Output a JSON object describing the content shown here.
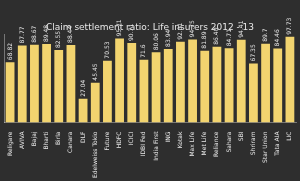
{
  "chart_data": {
    "type": "bar",
    "title": "Claim settlement ratio: Life insurers 2012 - 13",
    "categories": [
      "Religare",
      "AVIVA",
      "Bajaj",
      "Bharti",
      "Birla",
      "Canara",
      "DLF",
      "Edelweiss Tokio",
      "Future",
      "HDFC",
      "ICICI",
      "IDBI Fed",
      "India First",
      "ING",
      "Kotak",
      "Max Life",
      "Met Life",
      "Reliance",
      "Sahara",
      "SBI",
      "Shriram",
      "Star Union",
      "Tata AIA",
      "LIC"
    ],
    "values": [
      68.82,
      87.77,
      88.67,
      89.48,
      82.55,
      88.44,
      27.04,
      45.45,
      70.53,
      95.71,
      90.71,
      71.6,
      80.06,
      83.94,
      92.01,
      94.75,
      81.89,
      86.4,
      84.71,
      94.41,
      67.35,
      89.7,
      84.46,
      97.73
    ],
    "value_labels": [
      "68.82",
      "87.77",
      "88.67",
      "89.48",
      "82.55",
      "88.44",
      "27.04",
      "45.45",
      "70.53",
      "95.71",
      "90.71",
      "71.6",
      "80.06",
      "83.94",
      "92.01",
      "94.75",
      "81.89",
      "86.40",
      "84.71",
      "94.41",
      "67.35",
      "89.7",
      "84.46",
      "97.73"
    ],
    "color": "#f2d46f",
    "ylim": [
      0,
      100
    ],
    "grid": false,
    "data_labels": true,
    "tick_labels": "x"
  }
}
